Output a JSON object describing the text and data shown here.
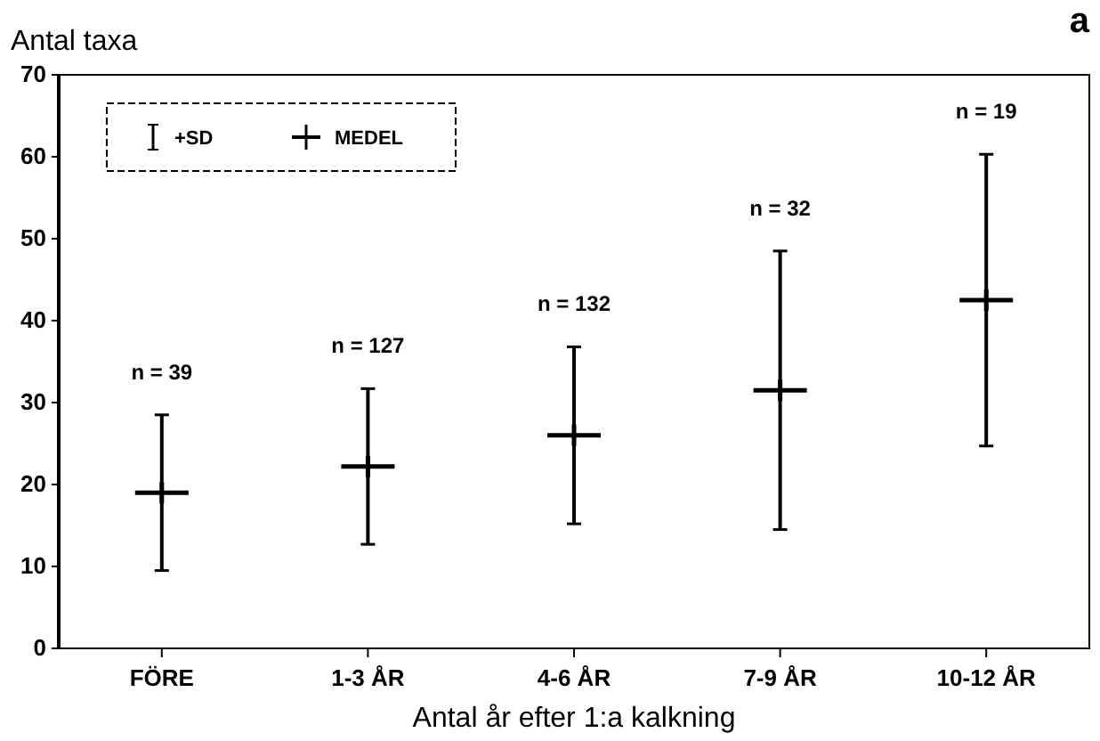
{
  "chart_data": {
    "type": "scatter",
    "ylabel": "Antal taxa",
    "xlabel": "Antal år efter 1:a kalkning",
    "categories": [
      "FÖRE",
      "1-3 ÅR",
      "4-6 ÅR",
      "7-9 ÅR",
      "10-12 ÅR"
    ],
    "series": [
      {
        "name": "MEDEL",
        "color": "#000000",
        "values": [
          19,
          22.2,
          26,
          31.5,
          42.5
        ],
        "errors": [
          9.5,
          9.5,
          10.8,
          17,
          17.8
        ]
      }
    ],
    "ylim": [
      0,
      70
    ],
    "yticks": [
      0,
      10,
      20,
      30,
      40,
      50,
      60,
      70
    ],
    "grid": false,
    "legend": "top left",
    "marker": "cross",
    "annotations": [
      "a",
      "+SD",
      "n = 39",
      "n = 127",
      "n = 132",
      "n = 32",
      "n = 19"
    ]
  }
}
